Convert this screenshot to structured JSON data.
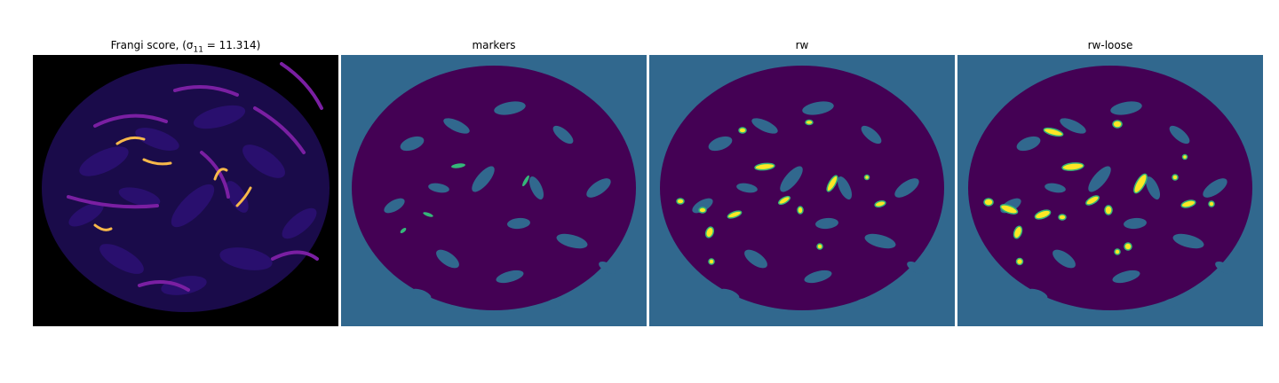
{
  "figure": {
    "panels": [
      {
        "id": "frangi",
        "title": "Frangi score, (σ",
        "title_sub": "11",
        "title_rest": " = 11.314)",
        "colormap": "magma"
      },
      {
        "id": "markers",
        "title": "markers",
        "colormap": "viridis"
      },
      {
        "id": "rw",
        "title": "rw",
        "colormap": "viridis"
      },
      {
        "id": "rw-loose",
        "title": "rw-loose",
        "colormap": "viridis"
      }
    ],
    "colors": {
      "background_frangi": "#000000",
      "blob_frangi_low": "#2a1070",
      "blob_frangi_mid": "#7a1fa2",
      "ridge_frangi_hot": "#f8b84a",
      "background_label": "#31688e",
      "blob_label": "#440154",
      "marker_label": "#35b779",
      "ridge_label_core": "#fde725",
      "ridge_label_edge": "#35b779"
    }
  }
}
